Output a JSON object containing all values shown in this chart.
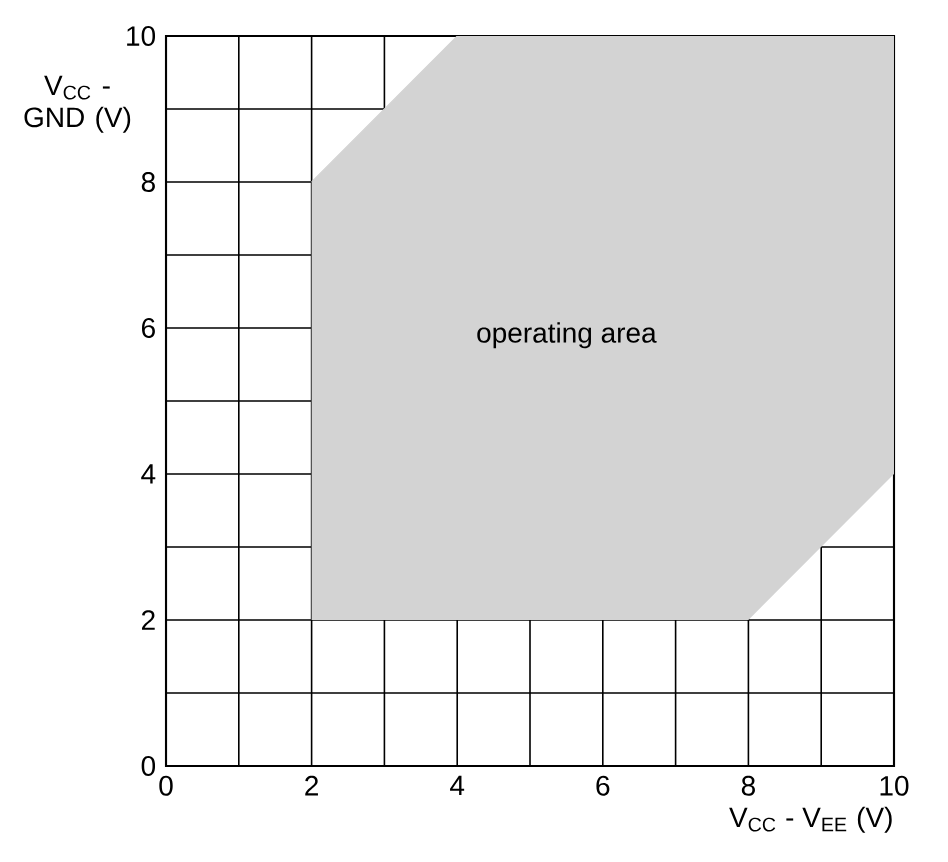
{
  "chart_data": {
    "type": "line",
    "xlabel": "V$_{CC}$ - V$_{EE}$ (V)",
    "ylabel": "V$_{CC}$ - GND (V)",
    "xlim": [
      0,
      10
    ],
    "ylim": [
      0,
      10
    ],
    "xticks": [
      0,
      {
        "value": 1,
        "label": null
      },
      2,
      {
        "value": 3,
        "label": null
      },
      4,
      {
        "value": 5,
        "label": null
      },
      6,
      {
        "value": 7,
        "label": null
      },
      8,
      {
        "value": 9,
        "label": null
      },
      10
    ],
    "yticks": [
      0,
      {
        "value": 1,
        "label": null
      },
      2,
      {
        "value": 3,
        "label": null
      },
      4,
      {
        "value": 5,
        "label": null
      },
      6,
      {
        "value": 7,
        "label": null
      },
      8,
      {
        "value": 9,
        "label": null
      },
      10
    ],
    "grid": true,
    "series": [
      {
        "color": "#d3d3d3",
        "x": [
          2,
          4,
          8,
          10
        ],
        "values": [
          8,
          10,
          10,
          10
        ],
        "lower": [
          2,
          2,
          2,
          4
        ],
        "upper": [
          8,
          10,
          10,
          10
        ]
      }
    ],
    "annotations": [
      "operating area"
    ]
  }
}
